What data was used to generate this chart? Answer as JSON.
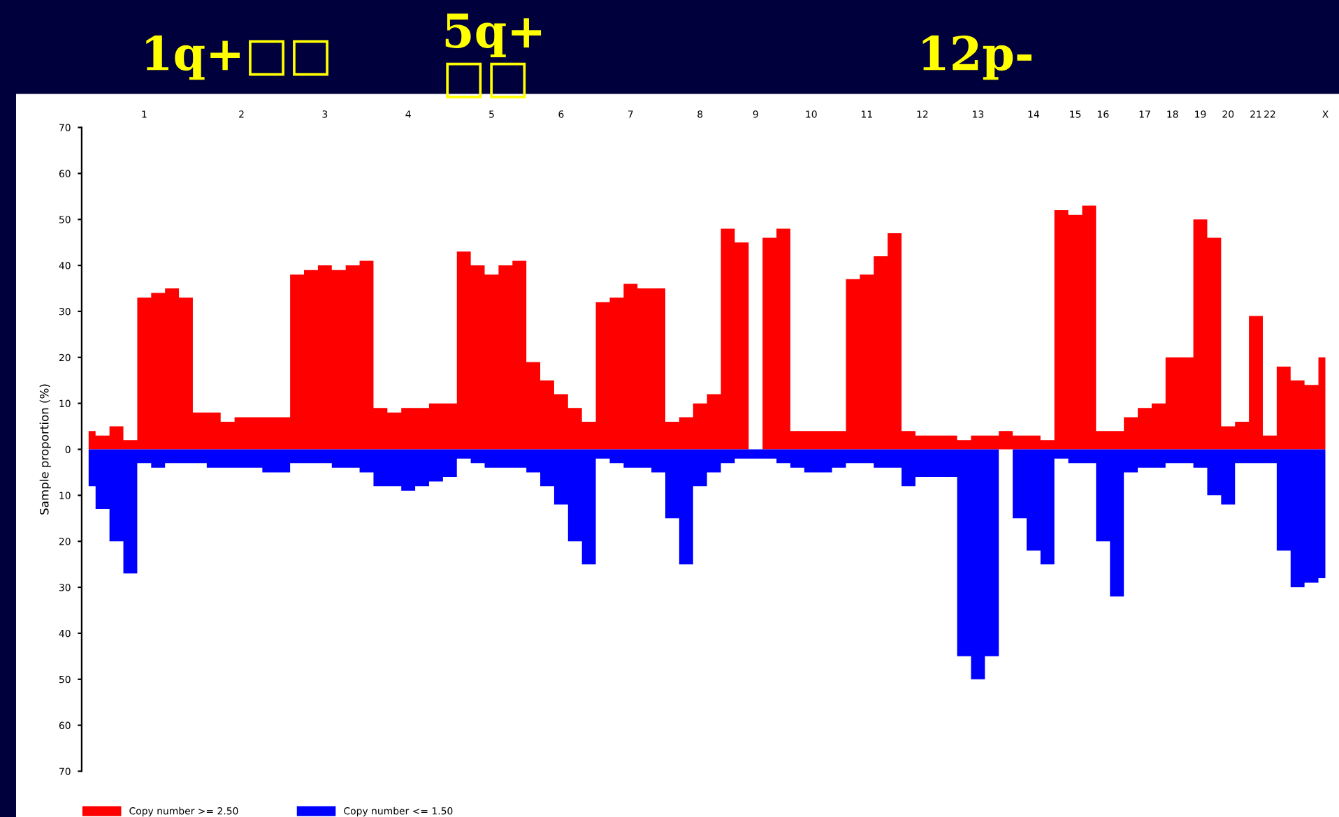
{
  "chart_data": {
    "type": "area",
    "ylabel": "Sample proportion (%)",
    "annotations": [
      "1q+□□",
      "5q+\n□□",
      "12p-"
    ],
    "categories": [
      null,
      null,
      null,
      null,
      "1",
      null,
      null,
      null,
      null,
      null,
      null,
      "2",
      null,
      null,
      null,
      null,
      null,
      "3",
      null,
      null,
      null,
      null,
      null,
      "4",
      null,
      null,
      null,
      null,
      null,
      "5",
      null,
      null,
      null,
      null,
      "6",
      null,
      null,
      null,
      null,
      "7",
      null,
      null,
      null,
      null,
      "8",
      null,
      null,
      null,
      "9",
      null,
      null,
      null,
      "10",
      null,
      null,
      null,
      "11",
      null,
      null,
      null,
      "12",
      null,
      null,
      null,
      "13",
      null,
      null,
      null,
      "14",
      null,
      null,
      "15",
      null,
      "16",
      null,
      null,
      "17",
      null,
      "18",
      null,
      "19",
      null,
      "20",
      null,
      "21",
      "22",
      null,
      null,
      null,
      "X"
    ],
    "ylim": [
      -70,
      70
    ],
    "yticks": [
      {
        "value": -70,
        "label": "70"
      },
      {
        "value": -60,
        "label": "60"
      },
      {
        "value": -50,
        "label": "50"
      },
      {
        "value": -40,
        "label": "40"
      },
      {
        "value": -30,
        "label": "30"
      },
      {
        "value": -20,
        "label": "20"
      },
      {
        "value": -10,
        "label": "10"
      },
      0,
      10,
      20,
      30,
      40,
      50,
      60,
      70
    ],
    "grid": false,
    "legend": "bottom left",
    "series": [
      {
        "name": "Copy number >= 2.50",
        "color": "#ff0000",
        "values": [
          4,
          3,
          5,
          2,
          33,
          34,
          35,
          33,
          8,
          8,
          6,
          7,
          7,
          7,
          7,
          38,
          39,
          40,
          39,
          40,
          41,
          9,
          8,
          9,
          9,
          10,
          10,
          43,
          40,
          38,
          40,
          41,
          19,
          15,
          12,
          9,
          6,
          32,
          33,
          36,
          35,
          35,
          6,
          7,
          10,
          12,
          48,
          45,
          0,
          46,
          48,
          4,
          4,
          4,
          4,
          37,
          38,
          42,
          47,
          4,
          3,
          3,
          3,
          2,
          3,
          3,
          4,
          3,
          3,
          2,
          52,
          51,
          53,
          4,
          4,
          7,
          9,
          10,
          20,
          20,
          50,
          46,
          5,
          6,
          29,
          3,
          18,
          15,
          14,
          20
        ]
      },
      {
        "name": "Copy number <= 1.50",
        "color": "#0000ff",
        "values": [
          -8,
          -13,
          -20,
          -27,
          -3,
          -4,
          -3,
          -3,
          -3,
          -4,
          -4,
          -4,
          -4,
          -5,
          -5,
          -3,
          -3,
          -3,
          -4,
          -4,
          -5,
          -8,
          -8,
          -9,
          -8,
          -7,
          -6,
          -2,
          -3,
          -4,
          -4,
          -4,
          -5,
          -8,
          -12,
          -20,
          -25,
          -2,
          -3,
          -4,
          -4,
          -5,
          -15,
          -25,
          -8,
          -5,
          -3,
          -2,
          -2,
          -2,
          -3,
          -4,
          -5,
          -5,
          -4,
          -3,
          -3,
          -4,
          -4,
          -8,
          -6,
          -6,
          -6,
          -45,
          -50,
          -45,
          0,
          -15,
          -22,
          -25,
          -2,
          -3,
          -3,
          -20,
          -32,
          -5,
          -4,
          -4,
          -3,
          -3,
          -4,
          -10,
          -12,
          -3,
          -3,
          -3,
          -22,
          -30,
          -29,
          -28
        ]
      }
    ]
  }
}
